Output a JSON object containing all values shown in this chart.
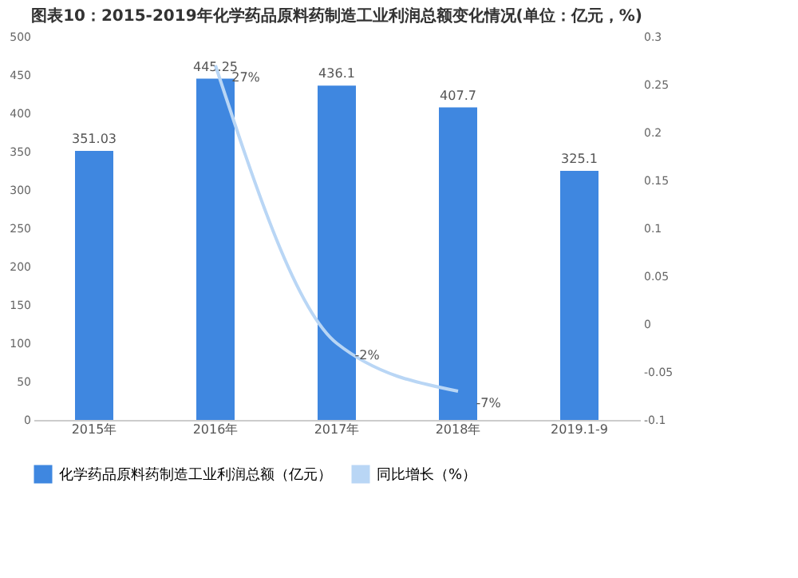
{
  "chart_data": {
    "type": "bar",
    "title": "图表10：2015-2019年化学药品原料药制造工业利润总额变化情况(单位：亿元，%)",
    "categories": [
      "2015年",
      "2016年",
      "2017年",
      "2018年",
      "2019.1-9"
    ],
    "series": [
      {
        "name": "化学药品原料药制造工业利润总额（亿元）",
        "color": "#3f87e0",
        "values": [
          351.03,
          445.25,
          436.1,
          407.7,
          325.1
        ],
        "value_labels": [
          "351.03",
          "445.25",
          "436.1",
          "407.7",
          "325.1"
        ]
      },
      {
        "name": "同比增长（%）",
        "type": "line",
        "axis": "y2",
        "color": "#b9d6f5",
        "values": [
          null,
          0.27,
          -0.02,
          -0.07,
          null
        ],
        "value_labels": [
          null,
          "27%",
          "-2%",
          "-7%",
          null
        ]
      }
    ],
    "ylim": [
      0,
      500
    ],
    "yticks": [
      0,
      50,
      100,
      150,
      200,
      250,
      300,
      350,
      400,
      450,
      500
    ],
    "y2lim": [
      -0.1,
      0.3
    ],
    "y2ticks": [
      -0.1,
      -0.05,
      0,
      0.05,
      0.1,
      0.15,
      0.2,
      0.25,
      0.3
    ],
    "grid": false,
    "legend": "bottom",
    "marker": "none",
    "line_style": "solid"
  }
}
